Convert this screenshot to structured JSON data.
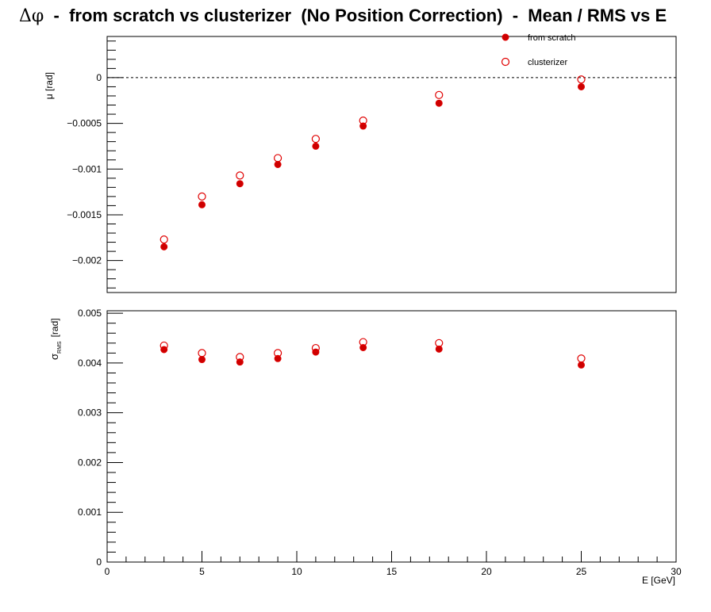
{
  "title": {
    "delta_phi": "Δφ",
    "rest": "  -  from scratch vs clusterizer  (No Position Correction)  -  Mean / RMS vs E"
  },
  "colors": {
    "marker": "#e00000",
    "fill": "#cc0000",
    "axis": "#000000"
  },
  "legend": {
    "position": "top-right",
    "from_scratch": "from scratch",
    "clusterizer": "clusterizer"
  },
  "chart_data": [
    {
      "type": "scatter",
      "panel": "top",
      "ylabel": "μ  [rad]",
      "xlim": [
        0,
        30
      ],
      "ylim": [
        -0.00235,
        0.00045
      ],
      "reference_line": 0,
      "yticks": [
        {
          "v": 0,
          "label": "0"
        },
        {
          "v": -0.0005,
          "label": "−0.0005"
        },
        {
          "v": -0.001,
          "label": "−0.001"
        },
        {
          "v": -0.0015,
          "label": "−0.0015"
        },
        {
          "v": -0.002,
          "label": "−0.002"
        }
      ],
      "x": [
        3,
        5,
        7,
        9,
        11,
        13.5,
        17.5,
        25
      ],
      "series": [
        {
          "name": "from scratch",
          "style": "filled",
          "values": [
            -0.00185,
            -0.00139,
            -0.00116,
            -0.00095,
            -0.00075,
            -0.00053,
            -0.00028,
            -0.0001
          ]
        },
        {
          "name": "clusterizer",
          "style": "open",
          "values": [
            -0.00177,
            -0.0013,
            -0.00107,
            -0.00088,
            -0.00067,
            -0.00047,
            -0.00019,
            -2e-05
          ]
        }
      ]
    },
    {
      "type": "scatter",
      "panel": "bottom",
      "ylabel_main": "σ",
      "ylabel_sub": "RMS",
      "ylabel_unit": "[rad]",
      "xlabel": "E  [GeV]",
      "xlim": [
        0,
        30
      ],
      "ylim": [
        0,
        0.00505
      ],
      "xticks": [
        {
          "v": 0,
          "label": "0"
        },
        {
          "v": 5,
          "label": "5"
        },
        {
          "v": 10,
          "label": "10"
        },
        {
          "v": 15,
          "label": "15"
        },
        {
          "v": 20,
          "label": "20"
        },
        {
          "v": 25,
          "label": "25"
        },
        {
          "v": 30,
          "label": "30"
        }
      ],
      "yticks": [
        {
          "v": 0,
          "label": "0"
        },
        {
          "v": 0.001,
          "label": "0.001"
        },
        {
          "v": 0.002,
          "label": "0.002"
        },
        {
          "v": 0.003,
          "label": "0.003"
        },
        {
          "v": 0.004,
          "label": "0.004"
        },
        {
          "v": 0.005,
          "label": "0.005"
        }
      ],
      "x": [
        3,
        5,
        7,
        9,
        11,
        13.5,
        17.5,
        25
      ],
      "series": [
        {
          "name": "from scratch",
          "style": "filled",
          "values": [
            0.00427,
            0.00407,
            0.00402,
            0.00409,
            0.00422,
            0.00431,
            0.00428,
            0.00396
          ]
        },
        {
          "name": "clusterizer",
          "style": "open",
          "values": [
            0.00435,
            0.0042,
            0.00412,
            0.0042,
            0.0043,
            0.00442,
            0.0044,
            0.00409
          ]
        }
      ]
    }
  ]
}
